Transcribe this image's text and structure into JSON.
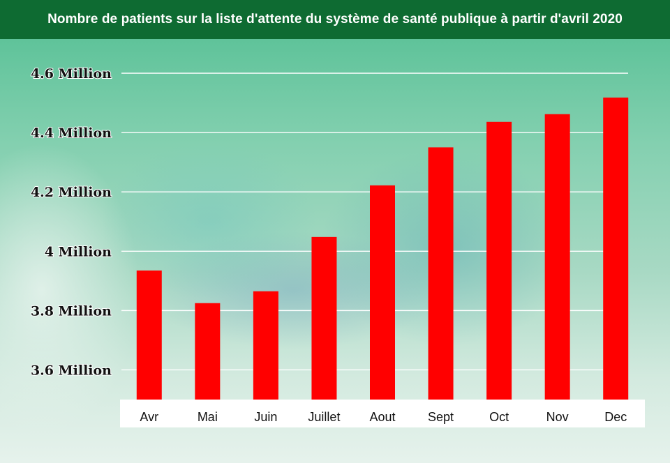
{
  "chart_data": {
    "type": "bar",
    "title": "Nombre de patients sur la liste d'attente du système de santé publique à partir d'avril 2020",
    "categories": [
      "Avr",
      "Mai",
      "Juin",
      "Juillet",
      "Aout",
      "Sept",
      "Oct",
      "Nov",
      "Dec"
    ],
    "values": [
      3.935,
      3.825,
      3.865,
      4.048,
      4.222,
      4.35,
      4.436,
      4.462,
      4.518
    ],
    "ylim": [
      3.5,
      4.6
    ],
    "yticks": [
      3.6,
      3.8,
      4.0,
      4.2,
      4.4,
      4.6
    ],
    "ytick_labels": [
      "3.6 Million",
      "3.8 Million",
      "4 Million",
      "4.2 Million",
      "4.4 Million",
      "4.6 Million"
    ],
    "bar_color": "#ff0000",
    "grid": true
  },
  "colors": {
    "header": "#0e6b32",
    "bar": "#ff0000",
    "grid": "#ffffff"
  }
}
